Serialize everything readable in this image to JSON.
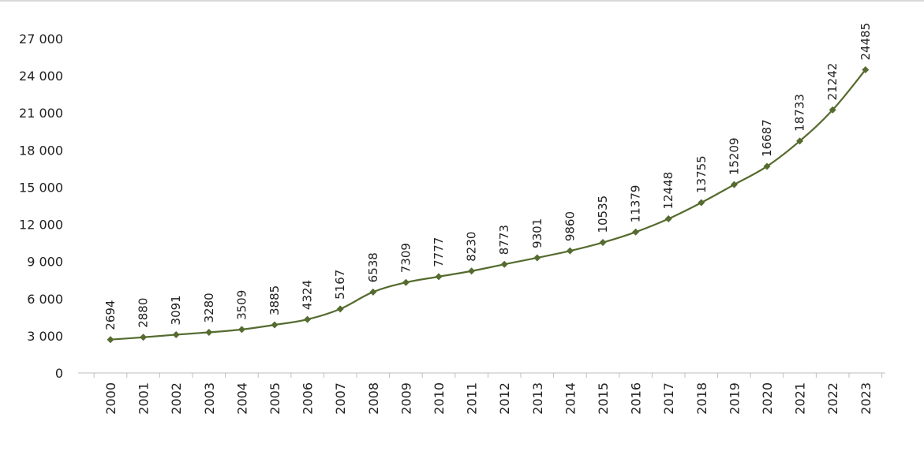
{
  "chart_data": {
    "type": "line",
    "title": "",
    "xlabel": "",
    "ylabel": "",
    "x": [
      "2000",
      "2001",
      "2002",
      "2003",
      "2004",
      "2005",
      "2006",
      "2007",
      "2008",
      "2009",
      "2010",
      "2011",
      "2012",
      "2013",
      "2014",
      "2015",
      "2016",
      "2017",
      "2018",
      "2019",
      "2020",
      "2021",
      "2022",
      "2023"
    ],
    "series": [
      {
        "values": [
          2694,
          2880,
          3091,
          3280,
          3509,
          3885,
          4324,
          5167,
          6538,
          7309,
          7777,
          8230,
          8773,
          9301,
          9860,
          10535,
          11379,
          12448,
          13755,
          15209,
          16687,
          18733,
          21242,
          24485
        ],
        "value_labels": [
          "2694",
          "2880",
          "3091",
          "3280",
          "3509",
          "3885",
          "4324",
          "5167",
          "6538",
          "7309",
          "7777",
          "8230",
          "8773",
          "9301",
          "9860",
          "10535",
          "11379",
          "12448",
          "13755",
          "15209",
          "16687",
          "18733",
          "21242",
          "24485"
        ],
        "color": "#556b2f",
        "marker": "diamond"
      }
    ],
    "ylim": [
      0,
      27000
    ],
    "yticks": [
      0,
      3000,
      6000,
      9000,
      12000,
      15000,
      18000,
      21000,
      24000,
      27000
    ],
    "ytick_labels": [
      "0",
      "3 000",
      "6 000",
      "9 000",
      "12 000",
      "15 000",
      "18 000",
      "21 000",
      "24 000",
      "27 000"
    ],
    "grid": false,
    "legend": "none"
  }
}
